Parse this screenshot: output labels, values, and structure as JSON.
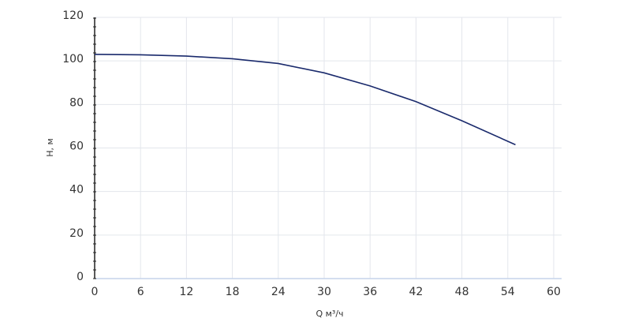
{
  "chart_data": {
    "type": "line",
    "x_label": "Q м³/ч",
    "y_label": "H, м",
    "x": [
      0,
      6,
      12,
      18,
      24,
      30,
      36,
      42,
      48,
      55
    ],
    "series": [
      {
        "color": "#1a2a6c",
        "values": [
          103,
          102.8,
          102.2,
          101,
          98.8,
          94.5,
          88.5,
          81.3,
          72.5,
          61.5
        ]
      }
    ],
    "xlim": [
      0,
      60
    ],
    "xticks": [
      0,
      6,
      12,
      18,
      24,
      30,
      36,
      42,
      48,
      54,
      60
    ],
    "ylim": [
      0,
      120
    ],
    "yticks": [
      0,
      20,
      40,
      60,
      80,
      100,
      120
    ],
    "grid": true
  }
}
